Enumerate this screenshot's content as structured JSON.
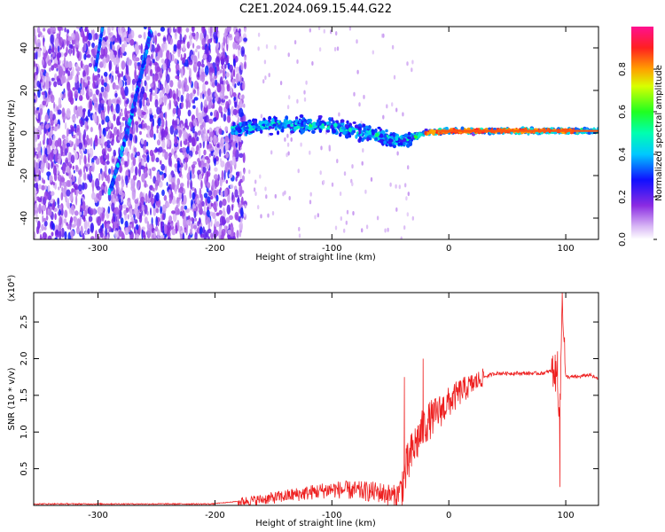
{
  "title": "C2E1.2024.069.15.44.G22",
  "chart_data": [
    {
      "type": "heatmap",
      "xlabel": "Height of straight line (km)",
      "ylabel": "Frequency (Hz)",
      "xlim": [
        -355,
        128
      ],
      "ylim": [
        -50,
        50
      ],
      "xticks": [
        -300,
        -200,
        -100,
        0,
        100
      ],
      "yticks": [
        -40,
        -20,
        0,
        20,
        40
      ],
      "colorbar": {
        "label": "Normalized spectral amplitude",
        "range": [
          0,
          1
        ],
        "ticks": [
          "0.0",
          "0.2",
          "0.4",
          "0.6",
          "0.8"
        ],
        "colormap": "rainbow (white-purple-blue-cyan-green-yellow-red-magenta)"
      },
      "features": [
        {
          "name": "noise region",
          "x_range": [
            -355,
            -180
          ],
          "note": "scattered purple/blue speckle"
        },
        {
          "name": "diagonal streak",
          "points": [
            [
              -290,
              -28
            ],
            [
              -275,
              0
            ],
            [
              -262,
              30
            ],
            [
              -255,
              48
            ]
          ]
        },
        {
          "name": "signal band center (Hz)",
          "x": [
            -180,
            -150,
            -100,
            -60,
            -40,
            -20,
            0,
            50,
            100,
            128
          ],
          "y": [
            2,
            4,
            3,
            -1,
            -4,
            0,
            1,
            1,
            1,
            1
          ]
        }
      ]
    },
    {
      "type": "line",
      "xlabel": "Height of straight line (km)",
      "ylabel": "SNR (10 * v/v)",
      "ylabel_exponent": "(x10⁴)",
      "xlim": [
        -355,
        128
      ],
      "ylim": [
        0,
        2.9
      ],
      "xticks": [
        -300,
        -200,
        -100,
        0,
        100
      ],
      "yticks": [
        "0.5",
        "1.0",
        "1.5",
        "2.0",
        "2.5"
      ],
      "color": "#ee2020",
      "x": [
        -355,
        -250,
        -200,
        -180,
        -160,
        -130,
        -100,
        -80,
        -60,
        -45,
        -40,
        -35,
        -30,
        -25,
        -20,
        -15,
        -10,
        0,
        10,
        20,
        30,
        40,
        50,
        60,
        70,
        80,
        85,
        90,
        93,
        95,
        97,
        100,
        110,
        120,
        128
      ],
      "y": [
        0.02,
        0.02,
        0.02,
        0.05,
        0.08,
        0.15,
        0.22,
        0.2,
        0.18,
        0.12,
        0.28,
        0.55,
        0.78,
        0.95,
        1.1,
        1.18,
        1.25,
        1.4,
        1.55,
        1.65,
        1.75,
        1.8,
        1.8,
        1.8,
        1.8,
        1.8,
        1.82,
        1.85,
        1.7,
        1.2,
        2.9,
        1.75,
        1.75,
        1.78,
        1.72
      ],
      "spikes": [
        [
          -38,
          1.75
        ],
        [
          -22,
          2.0
        ],
        [
          93,
          2.1
        ],
        [
          95,
          0.25
        ],
        [
          97,
          2.9
        ]
      ]
    }
  ]
}
